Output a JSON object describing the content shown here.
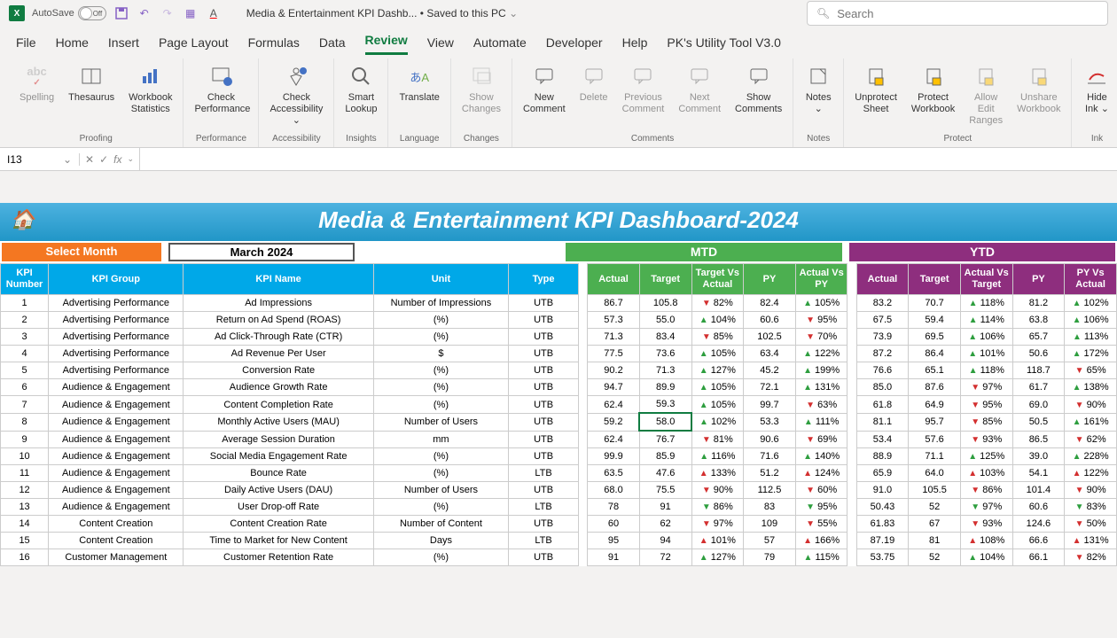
{
  "titlebar": {
    "autosave": "AutoSave",
    "toggle_state": "Off",
    "filename": "Media & Entertainment KPI Dashb...",
    "save_location": "Saved to this PC",
    "search_placeholder": "Search"
  },
  "tabs": [
    "File",
    "Home",
    "Insert",
    "Page Layout",
    "Formulas",
    "Data",
    "Review",
    "View",
    "Automate",
    "Developer",
    "Help",
    "PK's Utility Tool V3.0"
  ],
  "active_tab": "Review",
  "ribbon": {
    "groups": [
      {
        "name": "Proofing",
        "items": [
          {
            "label": "Spelling",
            "icon": "abc",
            "disabled": true
          },
          {
            "label": "Thesaurus",
            "icon": "book"
          },
          {
            "label": "Workbook\nStatistics",
            "icon": "stats"
          }
        ]
      },
      {
        "name": "Performance",
        "items": [
          {
            "label": "Check\nPerformance",
            "icon": "perf"
          }
        ]
      },
      {
        "name": "Accessibility",
        "items": [
          {
            "label": "Check\nAccessibility ⌄",
            "icon": "access"
          }
        ]
      },
      {
        "name": "Insights",
        "items": [
          {
            "label": "Smart\nLookup",
            "icon": "lookup"
          }
        ]
      },
      {
        "name": "Language",
        "items": [
          {
            "label": "Translate",
            "icon": "translate"
          }
        ]
      },
      {
        "name": "Changes",
        "items": [
          {
            "label": "Show\nChanges",
            "icon": "changes",
            "disabled": true
          }
        ]
      },
      {
        "name": "Comments",
        "items": [
          {
            "label": "New\nComment",
            "icon": "comment"
          },
          {
            "label": "Delete",
            "icon": "comment",
            "disabled": true
          },
          {
            "label": "Previous\nComment",
            "icon": "comment",
            "disabled": true
          },
          {
            "label": "Next\nComment",
            "icon": "comment",
            "disabled": true
          },
          {
            "label": "Show\nComments",
            "icon": "comment"
          }
        ]
      },
      {
        "name": "Notes",
        "items": [
          {
            "label": "Notes\n⌄",
            "icon": "note"
          }
        ]
      },
      {
        "name": "Protect",
        "items": [
          {
            "label": "Unprotect\nSheet",
            "icon": "protect"
          },
          {
            "label": "Protect\nWorkbook",
            "icon": "protect"
          },
          {
            "label": "Allow Edit\nRanges",
            "icon": "protect",
            "disabled": true
          },
          {
            "label": "Unshare\nWorkbook",
            "icon": "protect",
            "disabled": true
          }
        ]
      },
      {
        "name": "Ink",
        "items": [
          {
            "label": "Hide\nInk ⌄",
            "icon": "ink"
          }
        ]
      }
    ]
  },
  "namebox": "I13",
  "dashboard": {
    "title": "Media & Entertainment KPI Dashboard-2024",
    "month_label": "Select Month",
    "month_value": "March 2024",
    "mtd": "MTD",
    "ytd": "YTD",
    "headers": {
      "kpi_num": "KPI\nNumber",
      "kpi_group": "KPI Group",
      "kpi_name": "KPI Name",
      "unit": "Unit",
      "type": "Type",
      "actual": "Actual",
      "target": "Target",
      "tva": "Target Vs\nActual",
      "py": "PY",
      "avp": "Actual Vs\nPY",
      "avt": "Actual Vs\nTarget",
      "pva": "PY Vs\nActual"
    },
    "rows": [
      {
        "n": 1,
        "g": "Advertising Performance",
        "name": "Ad Impressions",
        "unit": "Number of Impressions",
        "type": "UTB",
        "ma": "86.7",
        "mt": "105.8",
        "mtva": "82%",
        "mtvad": "d",
        "mpy": "82.4",
        "mavp": "105%",
        "mavpd": "u",
        "ya": "83.2",
        "yt": "70.7",
        "yavt": "118%",
        "yavtd": "u",
        "ypy": "81.2",
        "ypva": "102%",
        "ypvad": "u"
      },
      {
        "n": 2,
        "g": "Advertising Performance",
        "name": "Return on Ad Spend (ROAS)",
        "unit": "(%)",
        "type": "UTB",
        "ma": "57.3",
        "mt": "55.0",
        "mtva": "104%",
        "mtvad": "u",
        "mpy": "60.6",
        "mavp": "95%",
        "mavpd": "d",
        "ya": "67.5",
        "yt": "59.4",
        "yavt": "114%",
        "yavtd": "u",
        "ypy": "63.8",
        "ypva": "106%",
        "ypvad": "u"
      },
      {
        "n": 3,
        "g": "Advertising Performance",
        "name": "Ad Click-Through Rate (CTR)",
        "unit": "(%)",
        "type": "UTB",
        "ma": "71.3",
        "mt": "83.4",
        "mtva": "85%",
        "mtvad": "d",
        "mpy": "102.5",
        "mavp": "70%",
        "mavpd": "d",
        "ya": "73.9",
        "yt": "69.5",
        "yavt": "106%",
        "yavtd": "u",
        "ypy": "65.7",
        "ypva": "113%",
        "ypvad": "u"
      },
      {
        "n": 4,
        "g": "Advertising Performance",
        "name": "Ad Revenue Per User",
        "unit": "$",
        "type": "UTB",
        "ma": "77.5",
        "mt": "73.6",
        "mtva": "105%",
        "mtvad": "u",
        "mpy": "63.4",
        "mavp": "122%",
        "mavpd": "u",
        "ya": "87.2",
        "yt": "86.4",
        "yavt": "101%",
        "yavtd": "u",
        "ypy": "50.6",
        "ypva": "172%",
        "ypvad": "u"
      },
      {
        "n": 5,
        "g": "Advertising Performance",
        "name": "Conversion Rate",
        "unit": "(%)",
        "type": "UTB",
        "ma": "90.2",
        "mt": "71.3",
        "mtva": "127%",
        "mtvad": "u",
        "mpy": "45.2",
        "mavp": "199%",
        "mavpd": "u",
        "ya": "76.6",
        "yt": "65.1",
        "yavt": "118%",
        "yavtd": "u",
        "ypy": "118.7",
        "ypva": "65%",
        "ypvad": "d"
      },
      {
        "n": 6,
        "g": "Audience & Engagement",
        "name": "Audience Growth Rate",
        "unit": "(%)",
        "type": "UTB",
        "ma": "94.7",
        "mt": "89.9",
        "mtva": "105%",
        "mtvad": "u",
        "mpy": "72.1",
        "mavp": "131%",
        "mavpd": "u",
        "ya": "85.0",
        "yt": "87.6",
        "yavt": "97%",
        "yavtd": "d",
        "ypy": "61.7",
        "ypva": "138%",
        "ypvad": "u"
      },
      {
        "n": 7,
        "g": "Audience & Engagement",
        "name": "Content Completion Rate",
        "unit": "(%)",
        "type": "UTB",
        "ma": "62.4",
        "mt": "59.3",
        "mtva": "105%",
        "mtvad": "u",
        "mpy": "99.7",
        "mavp": "63%",
        "mavpd": "d",
        "ya": "61.8",
        "yt": "64.9",
        "yavt": "95%",
        "yavtd": "d",
        "ypy": "69.0",
        "ypva": "90%",
        "ypvad": "d"
      },
      {
        "n": 8,
        "g": "Audience & Engagement",
        "name": "Monthly Active Users (MAU)",
        "unit": "Number of Users",
        "type": "UTB",
        "ma": "59.2",
        "mt": "58.0",
        "mtva": "102%",
        "mtvad": "u",
        "mpy": "53.3",
        "mavp": "111%",
        "mavpd": "u",
        "ya": "81.1",
        "yt": "95.7",
        "yavt": "85%",
        "yavtd": "d",
        "ypy": "50.5",
        "ypva": "161%",
        "ypvad": "u",
        "sel": true
      },
      {
        "n": 9,
        "g": "Audience & Engagement",
        "name": "Average Session Duration",
        "unit": "mm",
        "type": "UTB",
        "ma": "62.4",
        "mt": "76.7",
        "mtva": "81%",
        "mtvad": "d",
        "mpy": "90.6",
        "mavp": "69%",
        "mavpd": "d",
        "ya": "53.4",
        "yt": "57.6",
        "yavt": "93%",
        "yavtd": "d",
        "ypy": "86.5",
        "ypva": "62%",
        "ypvad": "d"
      },
      {
        "n": 10,
        "g": "Audience & Engagement",
        "name": "Social Media Engagement Rate",
        "unit": "(%)",
        "type": "UTB",
        "ma": "99.9",
        "mt": "85.9",
        "mtva": "116%",
        "mtvad": "u",
        "mpy": "71.6",
        "mavp": "140%",
        "mavpd": "u",
        "ya": "88.9",
        "yt": "71.1",
        "yavt": "125%",
        "yavtd": "u",
        "ypy": "39.0",
        "ypva": "228%",
        "ypvad": "u"
      },
      {
        "n": 11,
        "g": "Audience & Engagement",
        "name": "Bounce Rate",
        "unit": "(%)",
        "type": "LTB",
        "ma": "63.5",
        "mt": "47.6",
        "mtva": "133%",
        "mtvad": "ur",
        "mpy": "51.2",
        "mavp": "124%",
        "mavpd": "ur",
        "ya": "65.9",
        "yt": "64.0",
        "yavt": "103%",
        "yavtd": "ur",
        "ypy": "54.1",
        "ypva": "122%",
        "ypvad": "ur"
      },
      {
        "n": 12,
        "g": "Audience & Engagement",
        "name": "Daily Active Users (DAU)",
        "unit": "Number of Users",
        "type": "UTB",
        "ma": "68.0",
        "mt": "75.5",
        "mtva": "90%",
        "mtvad": "d",
        "mpy": "112.5",
        "mavp": "60%",
        "mavpd": "d",
        "ya": "91.0",
        "yt": "105.5",
        "yavt": "86%",
        "yavtd": "d",
        "ypy": "101.4",
        "ypva": "90%",
        "ypvad": "d"
      },
      {
        "n": 13,
        "g": "Audience & Engagement",
        "name": "User Drop-off Rate",
        "unit": "(%)",
        "type": "LTB",
        "ma": "78",
        "mt": "91",
        "mtva": "86%",
        "mtvad": "dg",
        "mpy": "83",
        "mavp": "95%",
        "mavpd": "dg",
        "ya": "50.43",
        "yt": "52",
        "yavt": "97%",
        "yavtd": "dg",
        "ypy": "60.6",
        "ypva": "83%",
        "ypvad": "dg"
      },
      {
        "n": 14,
        "g": "Content Creation",
        "name": "Content Creation Rate",
        "unit": "Number of  Content",
        "type": "UTB",
        "ma": "60",
        "mt": "62",
        "mtva": "97%",
        "mtvad": "d",
        "mpy": "109",
        "mavp": "55%",
        "mavpd": "d",
        "ya": "61.83",
        "yt": "67",
        "yavt": "93%",
        "yavtd": "d",
        "ypy": "124.6",
        "ypva": "50%",
        "ypvad": "d"
      },
      {
        "n": 15,
        "g": "Content Creation",
        "name": "Time to Market for New Content",
        "unit": "Days",
        "type": "LTB",
        "ma": "95",
        "mt": "94",
        "mtva": "101%",
        "mtvad": "ur",
        "mpy": "57",
        "mavp": "166%",
        "mavpd": "ur",
        "ya": "87.19",
        "yt": "81",
        "yavt": "108%",
        "yavtd": "ur",
        "ypy": "66.6",
        "ypva": "131%",
        "ypvad": "ur"
      },
      {
        "n": 16,
        "g": "Customer Management",
        "name": "Customer Retention Rate",
        "unit": "(%)",
        "type": "UTB",
        "ma": "91",
        "mt": "72",
        "mtva": "127%",
        "mtvad": "u",
        "mpy": "79",
        "mavp": "115%",
        "mavpd": "u",
        "ya": "53.75",
        "yt": "52",
        "yavt": "104%",
        "yavtd": "u",
        "ypy": "66.1",
        "ypva": "82%",
        "ypvad": "d"
      }
    ]
  }
}
